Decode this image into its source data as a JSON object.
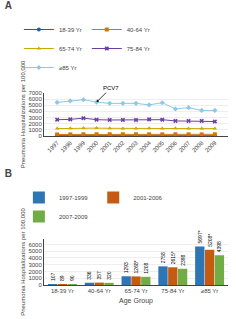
{
  "chart_data": [
    {
      "type": "line",
      "title": "A",
      "ylabel": "Pneumonia Hospitalizations per 100,000",
      "x": [
        1997,
        1998,
        1999,
        2000,
        2001,
        2002,
        2003,
        2004,
        2005,
        2006,
        2007,
        2008,
        2009
      ],
      "series": [
        {
          "name": "18-39 Yr",
          "color": "#1f5fa6",
          "marker": "circle",
          "values": [
            55,
            60,
            65,
            60,
            55,
            55,
            50,
            50,
            45,
            50,
            55,
            45,
            45
          ]
        },
        {
          "name": "40-64 Yr",
          "color": "#d4720c",
          "marker": "square",
          "values": [
            250,
            260,
            280,
            275,
            280,
            280,
            275,
            270,
            265,
            280,
            270,
            260,
            270
          ]
        },
        {
          "name": "65-74 Yr",
          "color": "#c8aa00",
          "marker": "triangle-up",
          "values": [
            1200,
            1250,
            1300,
            1280,
            1250,
            1230,
            1200,
            1250,
            1200,
            1250,
            1200,
            1200,
            1200
          ]
        },
        {
          "name": "75-84 Yr",
          "color": "#6e3fa3",
          "marker": "x",
          "values": [
            2650,
            2700,
            2900,
            2650,
            2600,
            2600,
            2600,
            2700,
            2650,
            2450,
            2450,
            2450,
            2350
          ]
        },
        {
          "name": "≥85 Yr",
          "color": "#8ec8e8",
          "marker": "diamond",
          "values": [
            5450,
            5700,
            5900,
            5500,
            5300,
            5300,
            5300,
            5050,
            5400,
            4400,
            4600,
            4150,
            4150
          ]
        }
      ],
      "xlim": [
        1996,
        2010
      ],
      "xticks": [
        1997,
        1998,
        1999,
        2000,
        2001,
        2002,
        2003,
        2004,
        2005,
        2006,
        2007,
        2008,
        2009
      ],
      "ylim": [
        0,
        7000
      ],
      "yticks": [
        0,
        1000,
        2000,
        3000,
        4000,
        5000,
        6000,
        7000
      ],
      "grid": true,
      "legend": "top",
      "annotations": [
        {
          "text": "PCV7",
          "x": 2000,
          "y": 5500
        }
      ]
    },
    {
      "type": "bar",
      "title": "B",
      "xlabel": "Age Group",
      "ylabel": "Pneumonia Hospitalizations per 100,000",
      "categories": [
        "18-39 Yr",
        "40-64 Yr",
        "65-74 Yr",
        "75-84 Yr",
        "≥85 Yr"
      ],
      "series": [
        {
          "name": "1997-1999",
          "color": "#2e75b6",
          "values": [
            107,
            336,
            1293,
            2758,
            5697
          ],
          "value_labels": [
            "107",
            "336",
            "1293",
            "2758",
            "5697*"
          ]
        },
        {
          "name": "2001-2006",
          "color": "#c55a11",
          "values": [
            89,
            357,
            1268,
            2615,
            5208
          ],
          "value_labels": [
            "89",
            "357",
            "1268*",
            "2615*",
            "5208*"
          ]
        },
        {
          "name": "2007-2009",
          "color": "#70ad47",
          "values": [
            90,
            320,
            1208,
            2398,
            4398
          ],
          "value_labels": [
            "90",
            "320",
            "1208",
            "2398",
            "4398"
          ]
        }
      ],
      "ylim": [
        0,
        6800
      ],
      "yticks": [
        0,
        1000,
        2000,
        3000,
        4000,
        5000,
        6000
      ],
      "grid": true,
      "legend": "top",
      "data_labels": true
    }
  ]
}
